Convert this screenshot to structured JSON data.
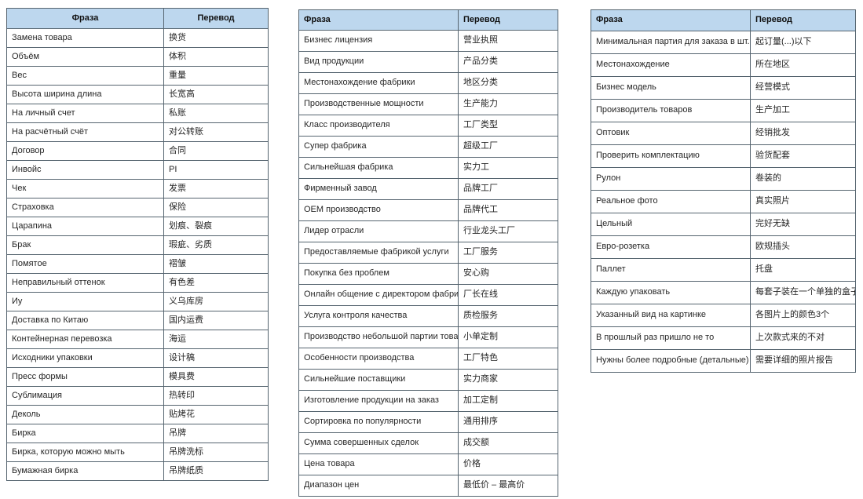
{
  "style": {
    "header_background": "#bdd7ee",
    "border_color": "#55646f",
    "text_color": "#262626"
  },
  "tables": [
    {
      "headers": {
        "phrase": "Фраза",
        "translation": "Перевод"
      },
      "header_align": "center",
      "rows": [
        {
          "phrase": "Замена товара",
          "translation": "换货"
        },
        {
          "phrase": "Объём",
          "translation": "体积"
        },
        {
          "phrase": "Вес",
          "translation": "重量"
        },
        {
          "phrase": "Высота ширина длина",
          "translation": "长宽高"
        },
        {
          "phrase": "На личный счет",
          "translation": "私账"
        },
        {
          "phrase": "На расчётный счёт",
          "translation": "对公转账"
        },
        {
          "phrase": "Договор",
          "translation": "合同"
        },
        {
          "phrase": "Инвойс",
          "translation": "PI"
        },
        {
          "phrase": "Чек",
          "translation": "发票"
        },
        {
          "phrase": "Страховка",
          "translation": "保险"
        },
        {
          "phrase": "Царапина",
          "translation": "划痕、裂痕"
        },
        {
          "phrase": "Брак",
          "translation": "瑕疵、劣质"
        },
        {
          "phrase": "Помятое",
          "translation": "褶皱"
        },
        {
          "phrase": "Неправильный оттенок",
          "translation": "有色差"
        },
        {
          "phrase": "Иу",
          "translation": "义乌库房"
        },
        {
          "phrase": "Доставка по Китаю",
          "translation": "国内运费"
        },
        {
          "phrase": "Контейнерная перевозка",
          "translation": "海运"
        },
        {
          "phrase": "Исходники упаковки",
          "translation": "设计稿"
        },
        {
          "phrase": "Пресс формы",
          "translation": "模具费"
        },
        {
          "phrase": "Сублимация",
          "translation": "热转印"
        },
        {
          "phrase": "Деколь",
          "translation": "贴烤花"
        },
        {
          "phrase": "Бирка",
          "translation": "吊牌"
        },
        {
          "phrase": "Бирка, которую можно мыть",
          "translation": "吊牌洗标"
        },
        {
          "phrase": "Бумажная бирка",
          "translation": "吊牌纸质"
        }
      ]
    },
    {
      "headers": {
        "phrase": "Фраза",
        "translation": "Перевод"
      },
      "header_align": "left",
      "rows": [
        {
          "phrase": "Бизнес лицензия",
          "translation": "营业执照"
        },
        {
          "phrase": "Вид продукции",
          "translation": "产品分类"
        },
        {
          "phrase": "Местонахождение фабрики",
          "translation": "地区分类"
        },
        {
          "phrase": "Производственные мощности",
          "translation": "生产能力"
        },
        {
          "phrase": "Класс производителя",
          "translation": "工厂类型"
        },
        {
          "phrase": "Супер фабрика",
          "translation": "超级工厂"
        },
        {
          "phrase": "Сильнейшая фабрика",
          "translation": "实力工"
        },
        {
          "phrase": "Фирменный завод",
          "translation": "品牌工厂"
        },
        {
          "phrase": "OEM производство",
          "translation": "品牌代工"
        },
        {
          "phrase": "Лидер отрасли",
          "translation": "行业龙头工厂"
        },
        {
          "phrase": "Предоставляемые фабрикой услуги",
          "translation": "工厂服务"
        },
        {
          "phrase": "Покупка без проблем",
          "translation": "安心购"
        },
        {
          "phrase": "Онлайн общение с директором фабрики",
          "translation": "厂长在线"
        },
        {
          "phrase": "Услуга контроля качества",
          "translation": "质检服务"
        },
        {
          "phrase": "Производство небольшой партии товара",
          "translation": "小单定制"
        },
        {
          "phrase": "Особенности производства",
          "translation": "工厂特色"
        },
        {
          "phrase": "Сильнейшие поставщики",
          "translation": "实力商家"
        },
        {
          "phrase": "Изготовление продукции на заказ",
          "translation": "加工定制"
        },
        {
          "phrase": "Сортировка по популярности",
          "translation": "通用排序"
        },
        {
          "phrase": "Сумма совершенных сделок",
          "translation": "成交额"
        },
        {
          "phrase": "Цена товара",
          "translation": "价格"
        },
        {
          "phrase": "Диапазон цен",
          "translation": "最低价 – 最高价"
        }
      ]
    },
    {
      "headers": {
        "phrase": "Фраза",
        "translation": "Перевод"
      },
      "header_align": "left",
      "rows": [
        {
          "phrase": "Минимальная партия для заказа в шт.",
          "translation": "起订量(...)以下"
        },
        {
          "phrase": "Местонахождение",
          "translation": "所在地区"
        },
        {
          "phrase": "Бизнес модель",
          "translation": "经营模式"
        },
        {
          "phrase": "Производитель товаров",
          "translation": "生产加工"
        },
        {
          "phrase": "Оптовик",
          "translation": "经销批发"
        },
        {
          "phrase": "Проверить комплектацию",
          "translation": "验货配套"
        },
        {
          "phrase": "Рулон",
          "translation": "卷装的"
        },
        {
          "phrase": "Реальное фото",
          "translation": "真实照片"
        },
        {
          "phrase": "Цельный",
          "translation": "完好无缺"
        },
        {
          "phrase": "Евро-розетка",
          "translation": "欧规插头"
        },
        {
          "phrase": "Паллет",
          "translation": "托盘"
        },
        {
          "phrase": "Каждую упаковать",
          "translation": "每套子装在一个单独的盒子里"
        },
        {
          "phrase": "Указанный вид на картинке",
          "translation": "各图片上的颜色3个"
        },
        {
          "phrase": "В прошлый раз пришло не то",
          "translation": "上次款式来的不对"
        },
        {
          "phrase": "Нужны более подробные (детальные) фото",
          "translation": "需要详细的照片报告"
        }
      ]
    }
  ]
}
